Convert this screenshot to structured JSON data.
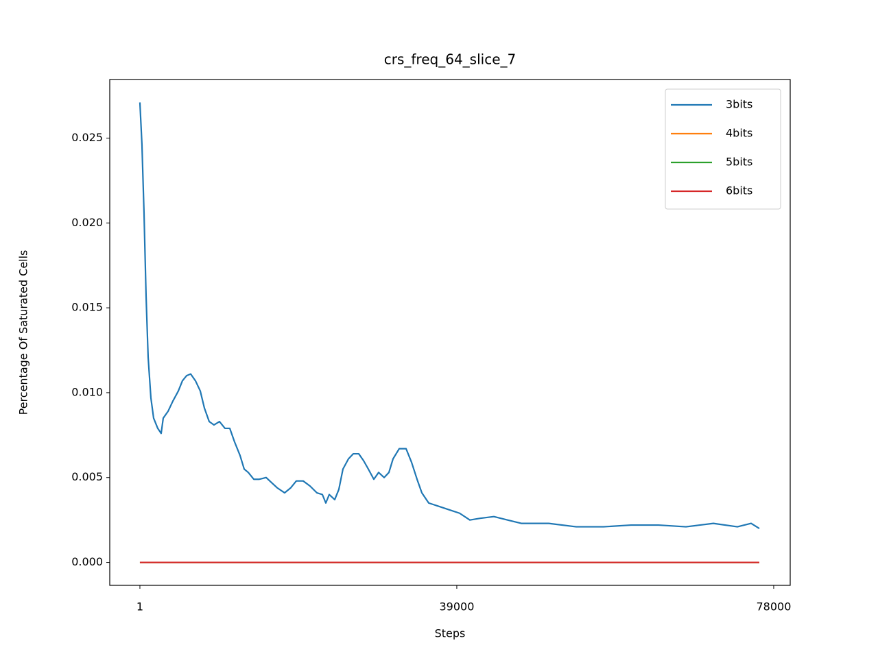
{
  "chart_data": {
    "type": "line",
    "title": "crs_freq_64_slice_7",
    "xlabel": "Steps",
    "ylabel": "Percentage Of Saturated Cells",
    "x": [
      1,
      254,
      507,
      761,
      1014,
      1352,
      1689,
      2196,
      2618,
      2871,
      3462,
      4053,
      4729,
      5235,
      5742,
      6248,
      6839,
      7430,
      7936,
      8527,
      9118,
      9794,
      10469,
      11060,
      11651,
      12326,
      12833,
      13339,
      14015,
      14690,
      15534,
      16209,
      16885,
      17813,
      18573,
      19249,
      20093,
      20937,
      21781,
      22457,
      22879,
      23301,
      23976,
      24483,
      24989,
      25665,
      26256,
      26931,
      27522,
      28113,
      28788,
      29379,
      30055,
      30646,
      31152,
      31912,
      32756,
      33431,
      34107,
      34698,
      35542,
      36808,
      38075,
      39341,
      40607,
      41873,
      43562,
      45250,
      46938,
      50315,
      53692,
      57069,
      60445,
      63822,
      67198,
      70575,
      73530,
      75218,
      76231
    ],
    "series": [
      {
        "name": "3bits",
        "color": "#1f77b4",
        "values": [
          0.0271,
          0.0246,
          0.0206,
          0.0157,
          0.0121,
          0.0097,
          0.0085,
          0.0079,
          0.0076,
          0.0085,
          0.0089,
          0.0095,
          0.0101,
          0.0107,
          0.011,
          0.0111,
          0.0107,
          0.0101,
          0.0091,
          0.0083,
          0.0081,
          0.0083,
          0.0079,
          0.0079,
          0.0071,
          0.0063,
          0.0055,
          0.0053,
          0.0049,
          0.0049,
          0.005,
          0.0047,
          0.0044,
          0.0041,
          0.0044,
          0.0048,
          0.0048,
          0.0045,
          0.0041,
          0.004,
          0.0035,
          0.004,
          0.0037,
          0.0043,
          0.0055,
          0.0061,
          0.0064,
          0.0064,
          0.006,
          0.0055,
          0.0049,
          0.0053,
          0.005,
          0.0053,
          0.0061,
          0.0067,
          0.0067,
          0.0059,
          0.0049,
          0.0041,
          0.0035,
          0.0033,
          0.0031,
          0.0029,
          0.0025,
          0.0026,
          0.0027,
          0.0025,
          0.0023,
          0.0023,
          0.0021,
          0.0021,
          0.0022,
          0.0022,
          0.0021,
          0.0023,
          0.0021,
          0.0023,
          0.002
        ]
      },
      {
        "name": "4bits",
        "color": "#ff7f0e",
        "values": [
          0,
          0,
          0,
          0,
          0,
          0,
          0,
          0,
          0,
          0,
          0,
          0,
          0,
          0,
          0,
          0,
          0,
          0,
          0,
          0,
          0,
          0,
          0,
          0,
          0,
          0,
          0,
          0,
          0,
          0,
          0,
          0,
          0,
          0,
          0,
          0,
          0,
          0,
          0,
          0,
          0,
          0,
          0,
          0,
          0,
          0,
          0,
          0,
          0,
          0,
          0,
          0,
          0,
          0,
          0,
          0,
          0,
          0,
          0,
          0,
          0,
          0,
          0,
          0,
          0,
          0,
          0,
          0,
          0,
          0,
          0,
          0,
          0,
          0,
          0,
          0,
          0,
          0,
          0
        ]
      },
      {
        "name": "5bits",
        "color": "#2ca02c",
        "values": [
          0,
          0,
          0,
          0,
          0,
          0,
          0,
          0,
          0,
          0,
          0,
          0,
          0,
          0,
          0,
          0,
          0,
          0,
          0,
          0,
          0,
          0,
          0,
          0,
          0,
          0,
          0,
          0,
          0,
          0,
          0,
          0,
          0,
          0,
          0,
          0,
          0,
          0,
          0,
          0,
          0,
          0,
          0,
          0,
          0,
          0,
          0,
          0,
          0,
          0,
          0,
          0,
          0,
          0,
          0,
          0,
          0,
          0,
          0,
          0,
          0,
          0,
          0,
          0,
          0,
          0,
          0,
          0,
          0,
          0,
          0,
          0,
          0,
          0,
          0,
          0,
          0,
          0,
          0
        ]
      },
      {
        "name": "6bits",
        "color": "#d62728",
        "values": [
          0,
          0,
          0,
          0,
          0,
          0,
          0,
          0,
          0,
          0,
          0,
          0,
          0,
          0,
          0,
          0,
          0,
          0,
          0,
          0,
          0,
          0,
          0,
          0,
          0,
          0,
          0,
          0,
          0,
          0,
          0,
          0,
          0,
          0,
          0,
          0,
          0,
          0,
          0,
          0,
          0,
          0,
          0,
          0,
          0,
          0,
          0,
          0,
          0,
          0,
          0,
          0,
          0,
          0,
          0,
          0,
          0,
          0,
          0,
          0,
          0,
          0,
          0,
          0,
          0,
          0,
          0,
          0,
          0,
          0,
          0,
          0,
          0,
          0,
          0,
          0,
          0,
          0,
          0
        ]
      }
    ],
    "xlim": [
      -3710,
      80030
    ],
    "ylim": [
      -0.00135,
      0.02845
    ],
    "xticks": [
      1,
      39000,
      78000
    ],
    "yticks": [
      {
        "value": 0,
        "label": "0.000"
      },
      {
        "value": 0.005,
        "label": "0.005"
      },
      {
        "value": 0.01,
        "label": "0.010"
      },
      {
        "value": 0.015,
        "label": "0.015"
      },
      {
        "value": 0.02,
        "label": "0.020"
      },
      {
        "value": 0.025,
        "label": "0.025"
      }
    ],
    "grid": false,
    "legend": "upper right"
  }
}
